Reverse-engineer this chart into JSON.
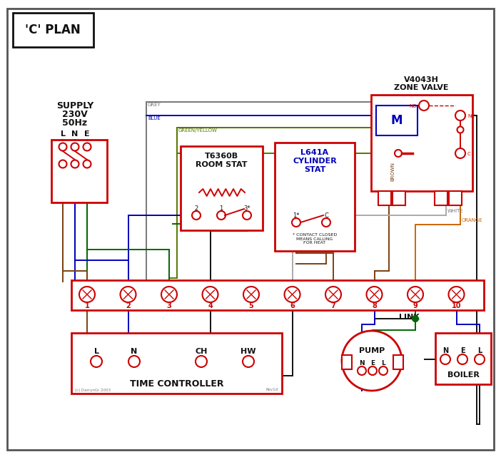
{
  "title": "'C' PLAN",
  "bg_color": "#ffffff",
  "red": "#cc0000",
  "blue": "#0000bb",
  "green": "#006600",
  "grey": "#777777",
  "brown": "#7b4010",
  "black": "#111111",
  "orange": "#cc6600",
  "gy": "#557700",
  "supply_text1": "SUPPLY",
  "supply_text2": "230V",
  "supply_text3": "50Hz",
  "supply_lne": [
    "L",
    "N",
    "E"
  ],
  "zone_title1": "V4043H",
  "zone_title2": "ZONE VALVE",
  "room_title1": "T6360B",
  "room_title2": "ROOM STAT",
  "cyl_title1": "L641A",
  "cyl_title2": "CYLINDER",
  "cyl_title3": "STAT",
  "cyl_note": "* CONTACT CLOSED\nMEANS CALLING\nFOR HEAT",
  "motor_label": "M",
  "link_label": "LINK",
  "tc_label": "TIME CONTROLLER",
  "tc_terms": [
    "L",
    "N",
    "CH",
    "HW"
  ],
  "pump_label": "PUMP",
  "pump_terms": [
    "N",
    "E",
    "L"
  ],
  "boiler_label": "BOILER",
  "boiler_terms": [
    "N",
    "E",
    "L"
  ],
  "terminals": [
    "1",
    "2",
    "3",
    "4",
    "5",
    "6",
    "7",
    "8",
    "9",
    "10"
  ],
  "wire_grey": "GREY",
  "wire_blue": "BLUE",
  "wire_gy": "GREEN/YELLOW",
  "wire_brown": "BROWN",
  "wire_white": "WHITE",
  "wire_orange": "ORANGE",
  "copyright": "(c) DarrynGr 2003",
  "revision": "Rev1d"
}
